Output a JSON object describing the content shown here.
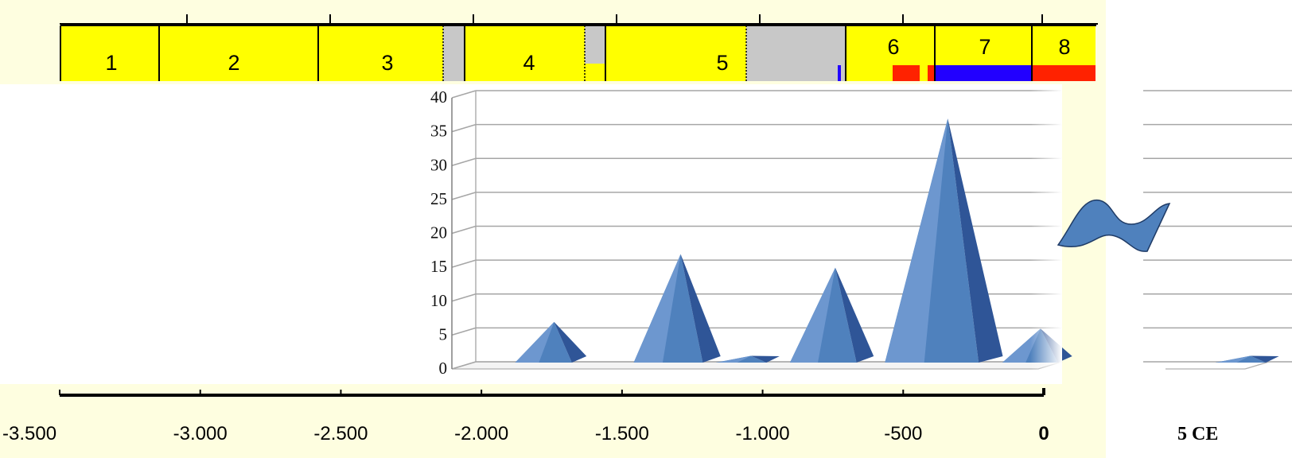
{
  "colors": {
    "page_background": "#fefee0",
    "segment_yellow": "#ffff00",
    "segment_gray": "#c8c8c8",
    "accent_red": "#ff2200",
    "accent_blue": "#2200ff",
    "pyramid_blue": "#4f81bd",
    "break_symbol": "#4f81bd"
  },
  "segment_bar": {
    "segments": [
      {
        "label": "1",
        "color": "yellow"
      },
      {
        "label": "2",
        "color": "yellow"
      },
      {
        "label": "3",
        "color": "yellow"
      },
      {
        "label": "",
        "color": "gray"
      },
      {
        "label": "4",
        "color": "yellow"
      },
      {
        "label": "5",
        "color": "yellow"
      },
      {
        "label": "",
        "color": "gray"
      },
      {
        "label": "6",
        "color": "yellow"
      },
      {
        "label": "7",
        "color": "yellow"
      },
      {
        "label": "8",
        "color": "yellow"
      }
    ]
  },
  "cropped_text": "5 CE",
  "chart_data": {
    "type": "bar",
    "style": "3d-pyramid",
    "title": "",
    "xlabel": "",
    "ylabel": "",
    "ylim": [
      0,
      40
    ],
    "y_ticks": [
      "0",
      "5",
      "10",
      "15",
      "20",
      "25",
      "30",
      "35",
      "40"
    ],
    "x_ticks": [
      "-3.500",
      "-3.000",
      "-2.500",
      "-2.000",
      "-1.500",
      "-1.000",
      "-500",
      "0"
    ],
    "xlim": [
      -3500,
      0
    ],
    "grid": true,
    "axis_break": true,
    "x": [
      -1750,
      -1300,
      -1050,
      -750,
      -350,
      -20,
      500
    ],
    "values": [
      6,
      16,
      1,
      14,
      36,
      5,
      1
    ]
  }
}
